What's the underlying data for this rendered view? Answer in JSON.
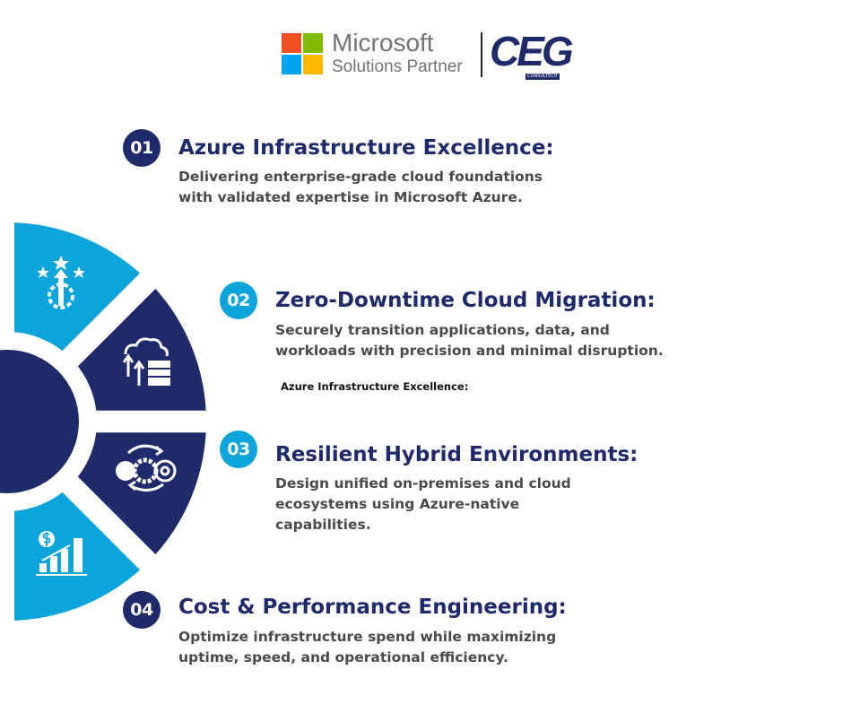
{
  "header": {
    "partner_logo": {
      "line1": "Microsoft",
      "line2": "Solutions Partner"
    },
    "company_logo": {
      "letters": "CEG",
      "tagline": "CONSULTECH"
    }
  },
  "colors": {
    "navy": "#1f2a6b",
    "light_blue": "#0ba5dc"
  },
  "items": [
    {
      "number": "01",
      "title": "Azure Infrastructure Excellence:",
      "description_lines": [
        "Delivering enterprise-grade cloud foundations",
        "with validated expertise in Microsoft Azure."
      ],
      "icon": "stars-gear-arrow-icon"
    },
    {
      "number": "02",
      "title": "Zero-Downtime Cloud Migration:",
      "description_lines": [
        "Securely transition applications, data, and",
        "workloads with precision and minimal disruption."
      ],
      "icon": "cloud-server-migration-icon"
    },
    {
      "number": "03",
      "title": "Resilient Hybrid Environments:",
      "description_lines": [
        "Design unified on-premises and cloud",
        "ecosystems using Azure-native",
        "capabilities."
      ],
      "icon": "hybrid-gears-cycle-icon"
    },
    {
      "number": "04",
      "title": "Cost & Performance Engineering:",
      "description_lines": [
        "Optimize infrastructure spend while maximizing",
        "uptime, speed, and operational efficiency."
      ],
      "icon": "cost-growth-chart-icon"
    }
  ],
  "stray_label": "Azure Infrastructure Excellence:"
}
